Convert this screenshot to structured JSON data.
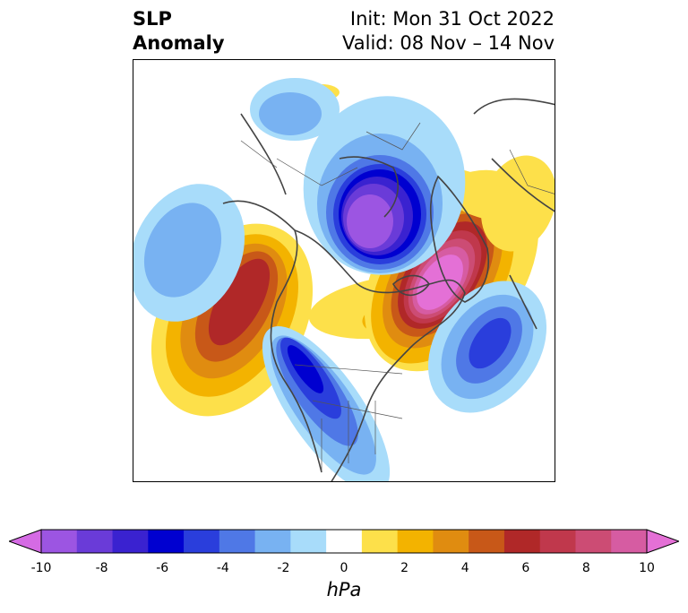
{
  "title": {
    "variable_line1": "SLP",
    "variable_line2": "Anomaly",
    "init": "Init: Mon 31 Oct 2022",
    "valid": "Valid: 08 Nov – 14 Nov"
  },
  "colorbar": {
    "label": "hPa",
    "ticks": [
      "-10",
      "-8",
      "-6",
      "-4",
      "-2",
      "0",
      "2",
      "4",
      "6",
      "8",
      "10"
    ],
    "colors": [
      "#d56be4",
      "#9c55e2",
      "#6a3bd8",
      "#3a22d0",
      "#0000d0",
      "#2a3edc",
      "#4f78e6",
      "#78b2f2",
      "#a8dcfa",
      "#ffffff",
      "#fde04a",
      "#f3b300",
      "#e08c10",
      "#c85818",
      "#b02828",
      "#c0384c",
      "#cc4c74",
      "#d65ca2",
      "#e470d6"
    ],
    "extend": "both"
  }
}
